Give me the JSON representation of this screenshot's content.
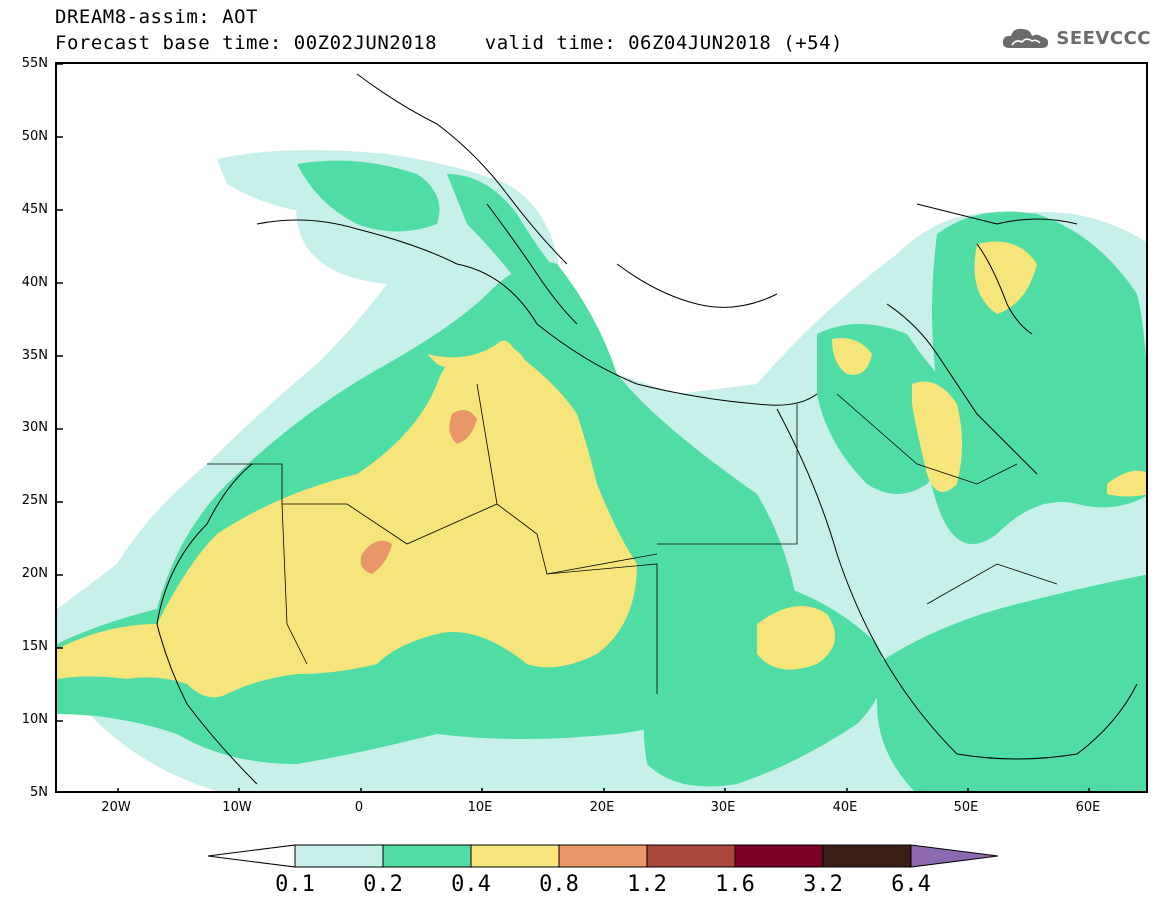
{
  "header": {
    "title_line1": "DREAM8-assim: AOT",
    "title_line2": "Forecast base time: 00Z02JUN2018    valid time: 06Z04JUN2018 (+54)",
    "logo_text": "SEEVCCC",
    "logo_icon": "cloud-icon"
  },
  "map": {
    "lat_labels": [
      "55N",
      "50N",
      "45N",
      "40N",
      "35N",
      "30N",
      "25N",
      "20N",
      "15N",
      "10N",
      "5N"
    ],
    "lon_labels": [
      "20W",
      "10W",
      "0",
      "10E",
      "20E",
      "30E",
      "40E",
      "50E",
      "60E"
    ],
    "lon_range": [
      -25,
      65
    ],
    "lat_range": [
      5,
      55
    ]
  },
  "colorbar": {
    "labels": [
      "0.1",
      "0.2",
      "0.4",
      "0.8",
      "1.2",
      "1.6",
      "3.2",
      "6.4"
    ],
    "colors": [
      "#ffffff",
      "#c8f0ea",
      "#50dca5",
      "#f5e57a",
      "#e8966a",
      "#a8483a",
      "#7a0025",
      "#3a2014",
      "#8d6ab0"
    ]
  }
}
